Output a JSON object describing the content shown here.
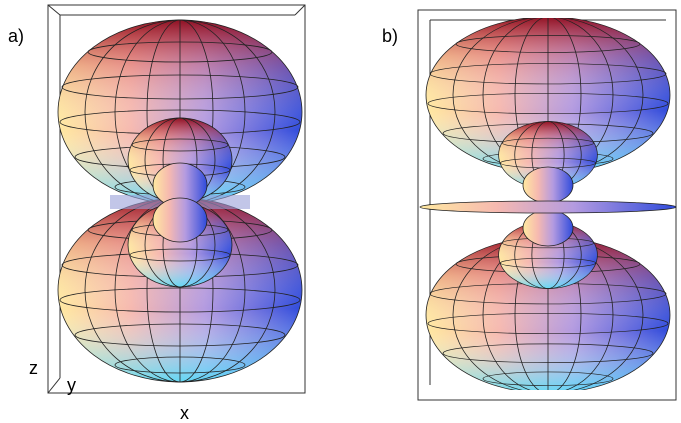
{
  "panels": [
    {
      "label": "a)",
      "axes": {
        "z": "z",
        "y": "y",
        "x": "x"
      }
    },
    {
      "label": "b)"
    }
  ]
}
